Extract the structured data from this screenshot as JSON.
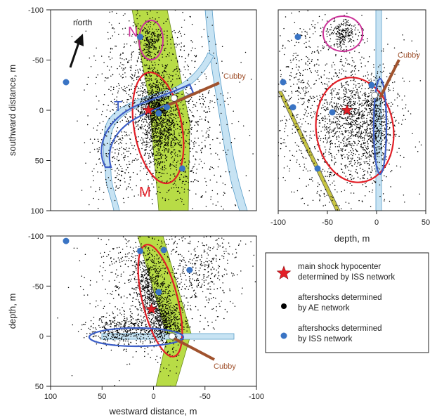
{
  "chart_data": [
    {
      "id": "map_view",
      "type": "scatter",
      "xlabel": "",
      "ylabel": "southward distance, m",
      "xlim": [
        100,
        -100
      ],
      "ylim": [
        -100,
        100
      ],
      "yticks": [
        "-100",
        "-50",
        "0",
        "50",
        "100"
      ],
      "labels": {
        "north": "north",
        "cubby": "Cubby",
        "N": "N",
        "T": "T",
        "M": "M"
      },
      "mainshock": [
        5,
        0
      ],
      "iss_points": [
        [
          85,
          -28
        ],
        [
          13,
          -73
        ],
        [
          -13,
          -3
        ],
        [
          -5,
          3
        ],
        [
          -28,
          58
        ]
      ],
      "cubby_point": [
        -20,
        -12
      ]
    },
    {
      "id": "depth_section",
      "type": "scatter",
      "xlabel": "depth, m",
      "ylabel": "",
      "xlim": [
        -100,
        50
      ],
      "ylim": [
        -100,
        100
      ],
      "xticks": [
        "-100",
        "-50",
        "0",
        "50"
      ],
      "labels": {
        "cubby": "Cubby"
      },
      "mainshock": [
        -30,
        0
      ],
      "iss_points": [
        [
          -95,
          -28
        ],
        [
          -80,
          -73
        ],
        [
          -85,
          -3
        ],
        [
          -60,
          58
        ],
        [
          -45,
          2
        ],
        [
          -5,
          -25
        ]
      ],
      "cubby_point": [
        -2,
        -15
      ]
    },
    {
      "id": "westward_section",
      "type": "scatter",
      "xlabel": "westward distance, m",
      "ylabel": "depth, m",
      "xlim": [
        100,
        -100
      ],
      "ylim": [
        -100,
        50
      ],
      "xticks": [
        "100",
        "50",
        "0",
        "-50",
        "-100"
      ],
      "yticks": [
        "-100",
        "-50",
        "0",
        "50"
      ],
      "labels": {
        "cubby": "Cubby"
      },
      "mainshock": [
        2,
        -27
      ],
      "iss_points": [
        [
          85,
          -95
        ],
        [
          13,
          -85
        ],
        [
          -10,
          -86
        ],
        [
          -35,
          -66
        ],
        [
          -5,
          -44
        ]
      ],
      "cubby_point": [
        -18,
        0
      ]
    }
  ],
  "legend": {
    "placement": "bottom-right",
    "entries": [
      {
        "symbol": "red-star",
        "line1": "main shock hypocenter",
        "line2": "determined by ISS network",
        "color": "#e21e26"
      },
      {
        "symbol": "black-dot",
        "line1": "aftershocks determined",
        "line2": "by AE network",
        "color": "#000000"
      },
      {
        "symbol": "blue-dot",
        "line1": "aftershocks determined",
        "line2": "by ISS network",
        "color": "#3a74c4"
      }
    ]
  },
  "colors": {
    "dike_green": "#b8dc46",
    "tunnel_blue": "#c7e3f3",
    "tunnel_outline": "#5a9ec9",
    "ellipse_red": "#e21e26",
    "ellipse_magenta": "#cc3399",
    "ellipse_blue": "#3d5fc7",
    "iss_blue": "#3a74c4",
    "cubby_brown": "#a0522d",
    "fault_olive": "#c7c440"
  }
}
